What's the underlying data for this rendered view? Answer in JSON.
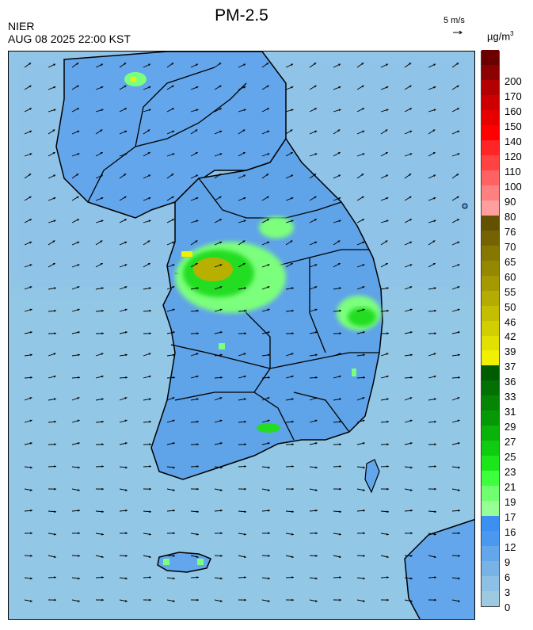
{
  "header": {
    "title": "PM-2.5",
    "org": "NIER",
    "timestamp": "AUG 08 2025 22:00 KST",
    "wind_ref": "5 m/s",
    "unit_base": "µg/m",
    "unit_exp": "3"
  },
  "legend": {
    "bands": [
      {
        "label": "0",
        "color": "#9ecae1"
      },
      {
        "label": "3",
        "color": "#8cc0e4"
      },
      {
        "label": "6",
        "color": "#79b3e6"
      },
      {
        "label": "9",
        "color": "#63a6ec"
      },
      {
        "label": "12",
        "color": "#4a98ef"
      },
      {
        "label": "16",
        "color": "#3c90f2"
      },
      {
        "label": "17",
        "color": "#96ff96"
      },
      {
        "label": "19",
        "color": "#6fff6f"
      },
      {
        "label": "21",
        "color": "#3dff3d"
      },
      {
        "label": "23",
        "color": "#1ae61a"
      },
      {
        "label": "25",
        "color": "#10cc10"
      },
      {
        "label": "27",
        "color": "#0ab30a"
      },
      {
        "label": "29",
        "color": "#069906"
      },
      {
        "label": "31",
        "color": "#048604"
      },
      {
        "label": "33",
        "color": "#037003"
      },
      {
        "label": "36",
        "color": "#005c00"
      },
      {
        "label": "37",
        "color": "#f0f000"
      },
      {
        "label": "39",
        "color": "#e1e000"
      },
      {
        "label": "42",
        "color": "#d2cf00"
      },
      {
        "label": "46",
        "color": "#c4be00"
      },
      {
        "label": "50",
        "color": "#b4ac00"
      },
      {
        "label": "55",
        "color": "#a49a00"
      },
      {
        "label": "60",
        "color": "#948800"
      },
      {
        "label": "65",
        "color": "#857700"
      },
      {
        "label": "70",
        "color": "#746300"
      },
      {
        "label": "76",
        "color": "#625200"
      },
      {
        "label": "80",
        "color": "#ff9e9e"
      },
      {
        "label": "90",
        "color": "#ff8080"
      },
      {
        "label": "100",
        "color": "#ff6262"
      },
      {
        "label": "110",
        "color": "#ff4343"
      },
      {
        "label": "120",
        "color": "#ff2525"
      },
      {
        "label": "140",
        "color": "#ff0000"
      },
      {
        "label": "150",
        "color": "#e60000"
      },
      {
        "label": "160",
        "color": "#cc0000"
      },
      {
        "label": "170",
        "color": "#b30000"
      },
      {
        "label": "200",
        "color": "#8c0000"
      },
      {
        "label": "",
        "color": "#6b0000"
      }
    ]
  },
  "map": {
    "sea_color": "#92c7e6",
    "land_color": "#5fa3e8",
    "hotspot_colors": [
      "#7cff7c",
      "#22dd22",
      "#b8b000",
      "#f0f000"
    ]
  }
}
